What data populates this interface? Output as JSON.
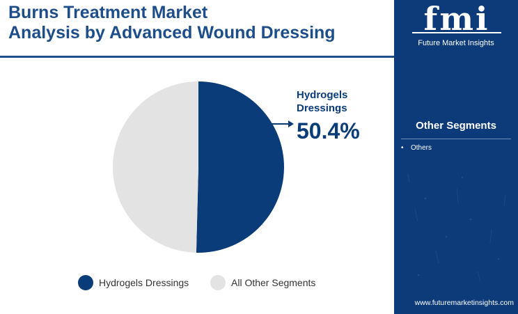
{
  "title": {
    "line1": "Burns Treatment Market",
    "line2": "Analysis by Advanced Wound Dressing"
  },
  "chart_data": {
    "type": "pie",
    "title": "Burns Treatment Market Analysis by Advanced Wound Dressing",
    "slices": [
      {
        "label": "Hydrogels Dressings",
        "value": 50.4,
        "color": "#0b3c7a"
      },
      {
        "label": "All Other Segments",
        "value": 49.6,
        "color": "#e3e3e3"
      }
    ],
    "legend_position": "bottom"
  },
  "callout": {
    "label": "Hydrogels Dressings",
    "value": "50.4%"
  },
  "legend": {
    "items": [
      {
        "label": "Hydrogels Dressings",
        "color": "#0b3c7a"
      },
      {
        "label": "All Other Segments",
        "color": "#e3e3e3"
      }
    ]
  },
  "sidebar": {
    "logo_text": "fmi",
    "logo_subtitle": "Future Market Insights",
    "segments_heading": "Other Segments",
    "segments": [
      "Others"
    ],
    "footer_url": "www.futuremarketinsights.com"
  },
  "colors": {
    "brand_blue": "#0d3b7a",
    "title_blue": "#1d4e89"
  }
}
